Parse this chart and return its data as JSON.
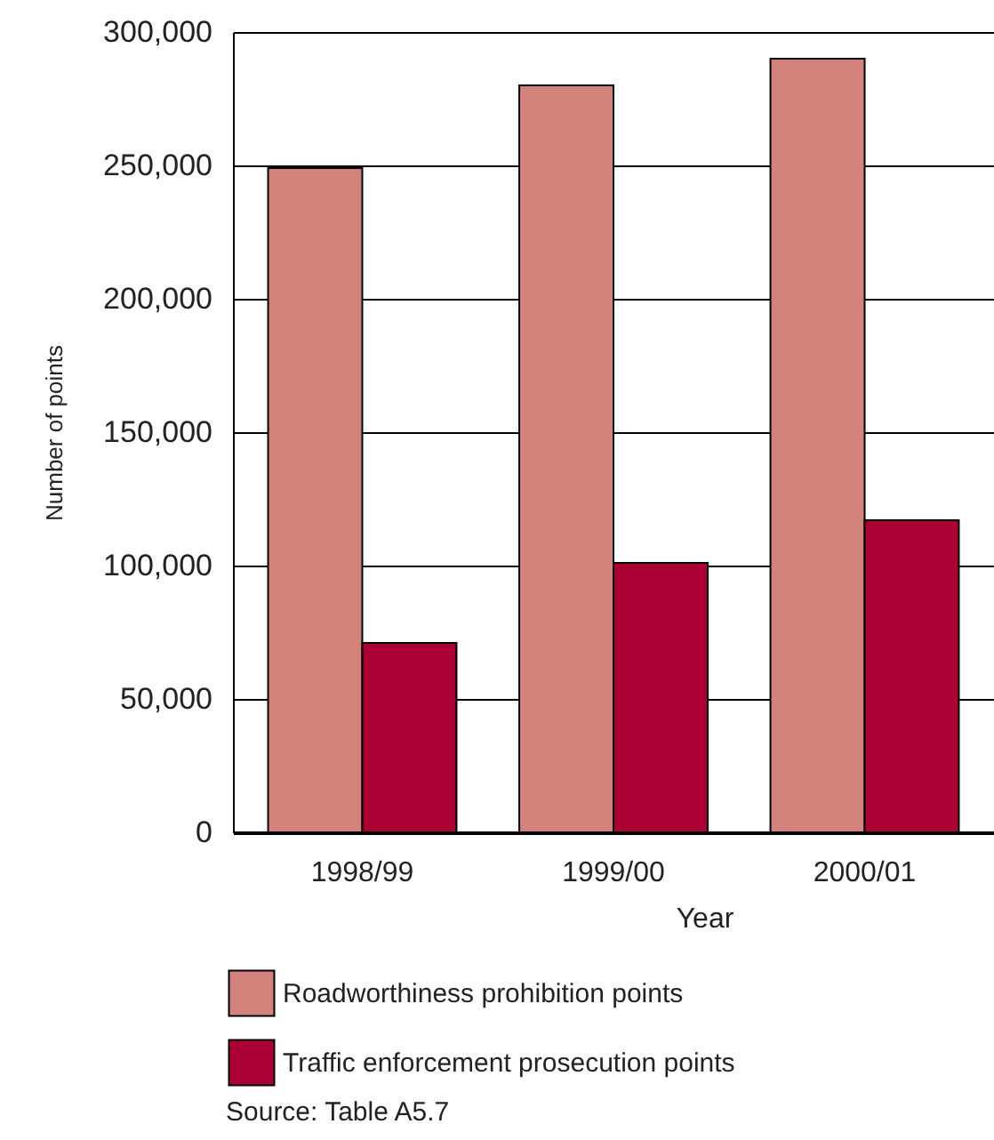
{
  "chart_data": {
    "type": "bar",
    "xlabel": "Year",
    "ylabel": "Number of points",
    "categories": [
      "1998/99",
      "1999/00",
      "2000/01"
    ],
    "series": [
      {
        "name": "Roadworthiness prohibition points",
        "color": "#d4837c",
        "values": [
          249000,
          280000,
          290000
        ]
      },
      {
        "name": "Traffic enforcement prosecution points",
        "color": "#ab0034",
        "values": [
          71000,
          101000,
          117000
        ]
      }
    ],
    "ylim": [
      0,
      300000
    ],
    "yticks": [
      {
        "value": 0,
        "label": "0"
      },
      {
        "value": 50000,
        "label": "50,000"
      },
      {
        "value": 100000,
        "label": "100,000"
      },
      {
        "value": 150000,
        "label": "150,000"
      },
      {
        "value": 200000,
        "label": "200,000"
      },
      {
        "value": 250000,
        "label": "250,000"
      },
      {
        "value": 300000,
        "label": "300,000"
      }
    ],
    "grid": "y",
    "legend": "bottom",
    "annotations": [
      "Source: Table A5.7"
    ]
  }
}
